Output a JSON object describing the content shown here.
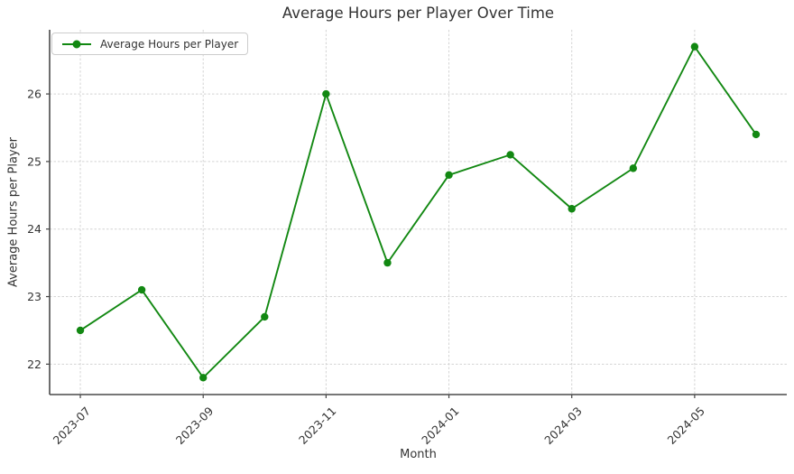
{
  "title": "Average Hours per Player Over Time",
  "chart_data": {
    "type": "line",
    "title": "Average Hours per Player Over Time",
    "xlabel": "Month",
    "ylabel": "Average Hours per Player",
    "categories": [
      "2023-07",
      "2023-08",
      "2023-09",
      "2023-10",
      "2023-11",
      "2023-12",
      "2024-01",
      "2024-02",
      "2024-03",
      "2024-04",
      "2024-05",
      "2024-06"
    ],
    "series": [
      {
        "name": "Average Hours per Player",
        "color": "#128812",
        "marker": "circle",
        "values": [
          22.5,
          23.1,
          21.8,
          22.7,
          26.0,
          23.5,
          24.8,
          25.1,
          24.3,
          24.9,
          26.7,
          25.4
        ]
      }
    ],
    "x_tick_labels": [
      "2023-07",
      "2023-09",
      "2023-11",
      "2024-01",
      "2024-03",
      "2024-05"
    ],
    "x_tick_indices": [
      0,
      2,
      4,
      6,
      8,
      10
    ],
    "y_ticks": [
      22,
      23,
      24,
      25,
      26
    ],
    "ylim": [
      21.55,
      26.95
    ],
    "grid": true,
    "grid_style": "dashed",
    "legend_position": "upper-left",
    "colors": {
      "grid": "#d4d4d4",
      "spine": "#4a4a4a",
      "text": "#333333",
      "background": "#ffffff"
    }
  }
}
